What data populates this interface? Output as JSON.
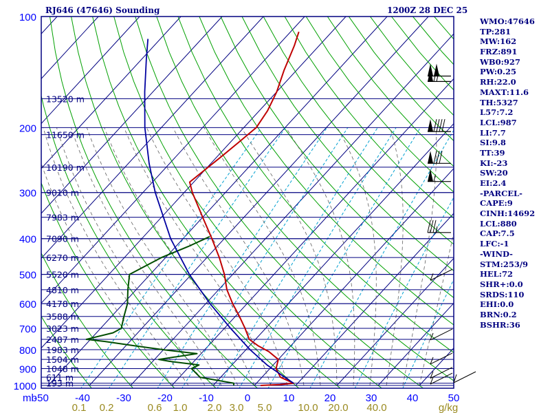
{
  "header": {
    "station": "RJ646 (47646) Sounding",
    "time": "1200Z 28 DEC 25"
  },
  "stats": [
    "WMO:47646",
    "TP:281",
    "MW:162",
    "FRZ:891",
    "WB0:927",
    "PW:0.25",
    "RH:22.0",
    "MAXT:11.6",
    "TH:5327",
    "L57:7.2",
    "LCL:987",
    "LI:7.7",
    "SI:9.8",
    "TT:39",
    "KI:-23",
    "SW:20",
    "EI:2.4",
    "-PARCEL-",
    "CAPE:9",
    "CINH:14692",
    "LCL:880",
    "CAP:7.5",
    "LFC:-1",
    "-WIND-",
    "STM:253/9",
    "HEL:72",
    "SHR+:0.0",
    "SRDS:110",
    "EHI:0.0",
    "BRN:0.2",
    "BSHR:36"
  ],
  "colors": {
    "axis_text": "#0000ff",
    "isobar": "#000080",
    "skew_isotherm": "#000080",
    "dry_adiabat": "#00a000",
    "mixing_ratio": "#00a0d0",
    "moist_adiabat": "#606060",
    "mixing_label": "#9a8a20",
    "temperature": "#c00000",
    "dewpoint": "#004d00",
    "parcel": "#0000a0",
    "frame": "#000080",
    "barb": "#000000"
  },
  "chart_data": {
    "type": "line",
    "title": "RJ646 (47646) Sounding",
    "xlabel": "",
    "ylabel": "mb",
    "y_unit": "mb",
    "x_range_c": [
      -50,
      50
    ],
    "p_range": [
      1000,
      100
    ],
    "x_ticks": [
      -50,
      -40,
      -30,
      -20,
      -10,
      0,
      10,
      20,
      30,
      40,
      50
    ],
    "x_tick_labels": [
      "-50",
      "-40",
      "-30",
      "-20",
      "-10",
      "0",
      "10",
      "20",
      "30",
      "40",
      "50"
    ],
    "p_ticks": [
      100,
      200,
      300,
      400,
      500,
      600,
      700,
      800,
      900,
      1000
    ],
    "p_tick_labels": [
      "100",
      "200",
      "300",
      "400",
      "500",
      "600",
      "700",
      "800",
      "900",
      "1000"
    ],
    "heights": [
      {
        "p": 167,
        "label": "13520 m"
      },
      {
        "p": 209,
        "label": "11650 m"
      },
      {
        "p": 256,
        "label": "10190 m"
      },
      {
        "p": 300,
        "label": "9010 m"
      },
      {
        "p": 350,
        "label": "7983 m"
      },
      {
        "p": 400,
        "label": "7090 m"
      },
      {
        "p": 450,
        "label": "6270 m"
      },
      {
        "p": 500,
        "label": "5520 m"
      },
      {
        "p": 550,
        "label": "4810 m"
      },
      {
        "p": 600,
        "label": "4178 m"
      },
      {
        "p": 650,
        "label": "3588 m"
      },
      {
        "p": 700,
        "label": "3023 m"
      },
      {
        "p": 750,
        "label": "2487 m"
      },
      {
        "p": 800,
        "label": "1983 m"
      },
      {
        "p": 850,
        "label": "1504 m"
      },
      {
        "p": 900,
        "label": "1048 m"
      },
      {
        "p": 950,
        "label": "611 m"
      },
      {
        "p": 986,
        "label": "193 m"
      }
    ],
    "mixing_ratio_labels": [
      "0.1",
      "0.2",
      "0.6",
      "1.0",
      "2.0",
      "3.0",
      "5.0",
      "10.0",
      "20.0",
      "40.0",
      "g/kg"
    ],
    "mixing_ratio_values": [
      0.1,
      0.2,
      0.6,
      1.0,
      2.0,
      3.0,
      5.0,
      10.0,
      20.0,
      40.0
    ],
    "series": [
      {
        "name": "Temperature",
        "points": [
          {
            "p": 1000,
            "t": 1.5
          },
          {
            "p": 995,
            "t": 6.0
          },
          {
            "p": 986,
            "t": 9.0
          },
          {
            "p": 950,
            "t": 4.5
          },
          {
            "p": 900,
            "t": 1.5
          },
          {
            "p": 850,
            "t": 0.0
          },
          {
            "p": 810,
            "t": -4.0
          },
          {
            "p": 780,
            "t": -8.0
          },
          {
            "p": 750,
            "t": -11.5
          },
          {
            "p": 700,
            "t": -15.0
          },
          {
            "p": 650,
            "t": -19.0
          },
          {
            "p": 600,
            "t": -23.5
          },
          {
            "p": 550,
            "t": -28.0
          },
          {
            "p": 500,
            "t": -32.0
          },
          {
            "p": 450,
            "t": -37.0
          },
          {
            "p": 400,
            "t": -43.0
          },
          {
            "p": 350,
            "t": -50.0
          },
          {
            "p": 300,
            "t": -58.0
          },
          {
            "p": 281,
            "t": -61.0
          },
          {
            "p": 260,
            "t": -60.0
          },
          {
            "p": 240,
            "t": -59.0
          },
          {
            "p": 220,
            "t": -58.0
          },
          {
            "p": 200,
            "t": -57.0
          },
          {
            "p": 180,
            "t": -58.0
          },
          {
            "p": 160,
            "t": -60.0
          },
          {
            "p": 140,
            "t": -63.0
          },
          {
            "p": 120,
            "t": -66.0
          },
          {
            "p": 110,
            "t": -68.0
          }
        ]
      },
      {
        "name": "Dewpoint",
        "points": [
          {
            "p": 1000,
            "t": -5.0
          },
          {
            "p": 986,
            "t": -5.5
          },
          {
            "p": 950,
            "t": -15.0
          },
          {
            "p": 900,
            "t": -19.0
          },
          {
            "p": 880,
            "t": -18.0
          },
          {
            "p": 860,
            "t": -26.0
          },
          {
            "p": 850,
            "t": -29.0
          },
          {
            "p": 820,
            "t": -21.0
          },
          {
            "p": 800,
            "t": -30.0
          },
          {
            "p": 780,
            "t": -38.0
          },
          {
            "p": 760,
            "t": -46.0
          },
          {
            "p": 750,
            "t": -51.0
          },
          {
            "p": 720,
            "t": -46.0
          },
          {
            "p": 700,
            "t": -45.0
          },
          {
            "p": 650,
            "t": -47.0
          },
          {
            "p": 600,
            "t": -49.0
          },
          {
            "p": 550,
            "t": -52.0
          },
          {
            "p": 500,
            "t": -55.0
          },
          {
            "p": 450,
            "t": -51.0
          },
          {
            "p": 420,
            "t": -47.0
          },
          {
            "p": 395,
            "t": -44.0
          }
        ]
      },
      {
        "name": "Parcel",
        "points": [
          {
            "p": 986,
            "t": 9.0
          },
          {
            "p": 880,
            "t": -1.5
          },
          {
            "p": 800,
            "t": -9.0
          },
          {
            "p": 700,
            "t": -18.5
          },
          {
            "p": 600,
            "t": -29.0
          },
          {
            "p": 500,
            "t": -40.5
          },
          {
            "p": 400,
            "t": -53.0
          },
          {
            "p": 300,
            "t": -67.0
          },
          {
            "p": 250,
            "t": -75.0
          },
          {
            "p": 200,
            "t": -84.0
          },
          {
            "p": 160,
            "t": -92.0
          },
          {
            "p": 130,
            "t": -99.0
          },
          {
            "p": 115,
            "t": -103.0
          }
        ]
      }
    ],
    "wind_barbs": [
      {
        "p": 145,
        "speed_kt": 100
      },
      {
        "p": 150,
        "speed_kt": 65
      },
      {
        "p": 205,
        "speed_kt": 90
      },
      {
        "p": 250,
        "speed_kt": 80
      },
      {
        "p": 280,
        "speed_kt": 55
      },
      {
        "p": 385,
        "speed_kt": 35
      },
      {
        "p": 510,
        "speed_kt": 5
      },
      {
        "p": 740,
        "speed_kt": 5
      },
      {
        "p": 860,
        "speed_kt": 5
      },
      {
        "p": 940,
        "speed_kt": 5
      },
      {
        "p": 975,
        "speed_kt": 5
      }
    ]
  }
}
